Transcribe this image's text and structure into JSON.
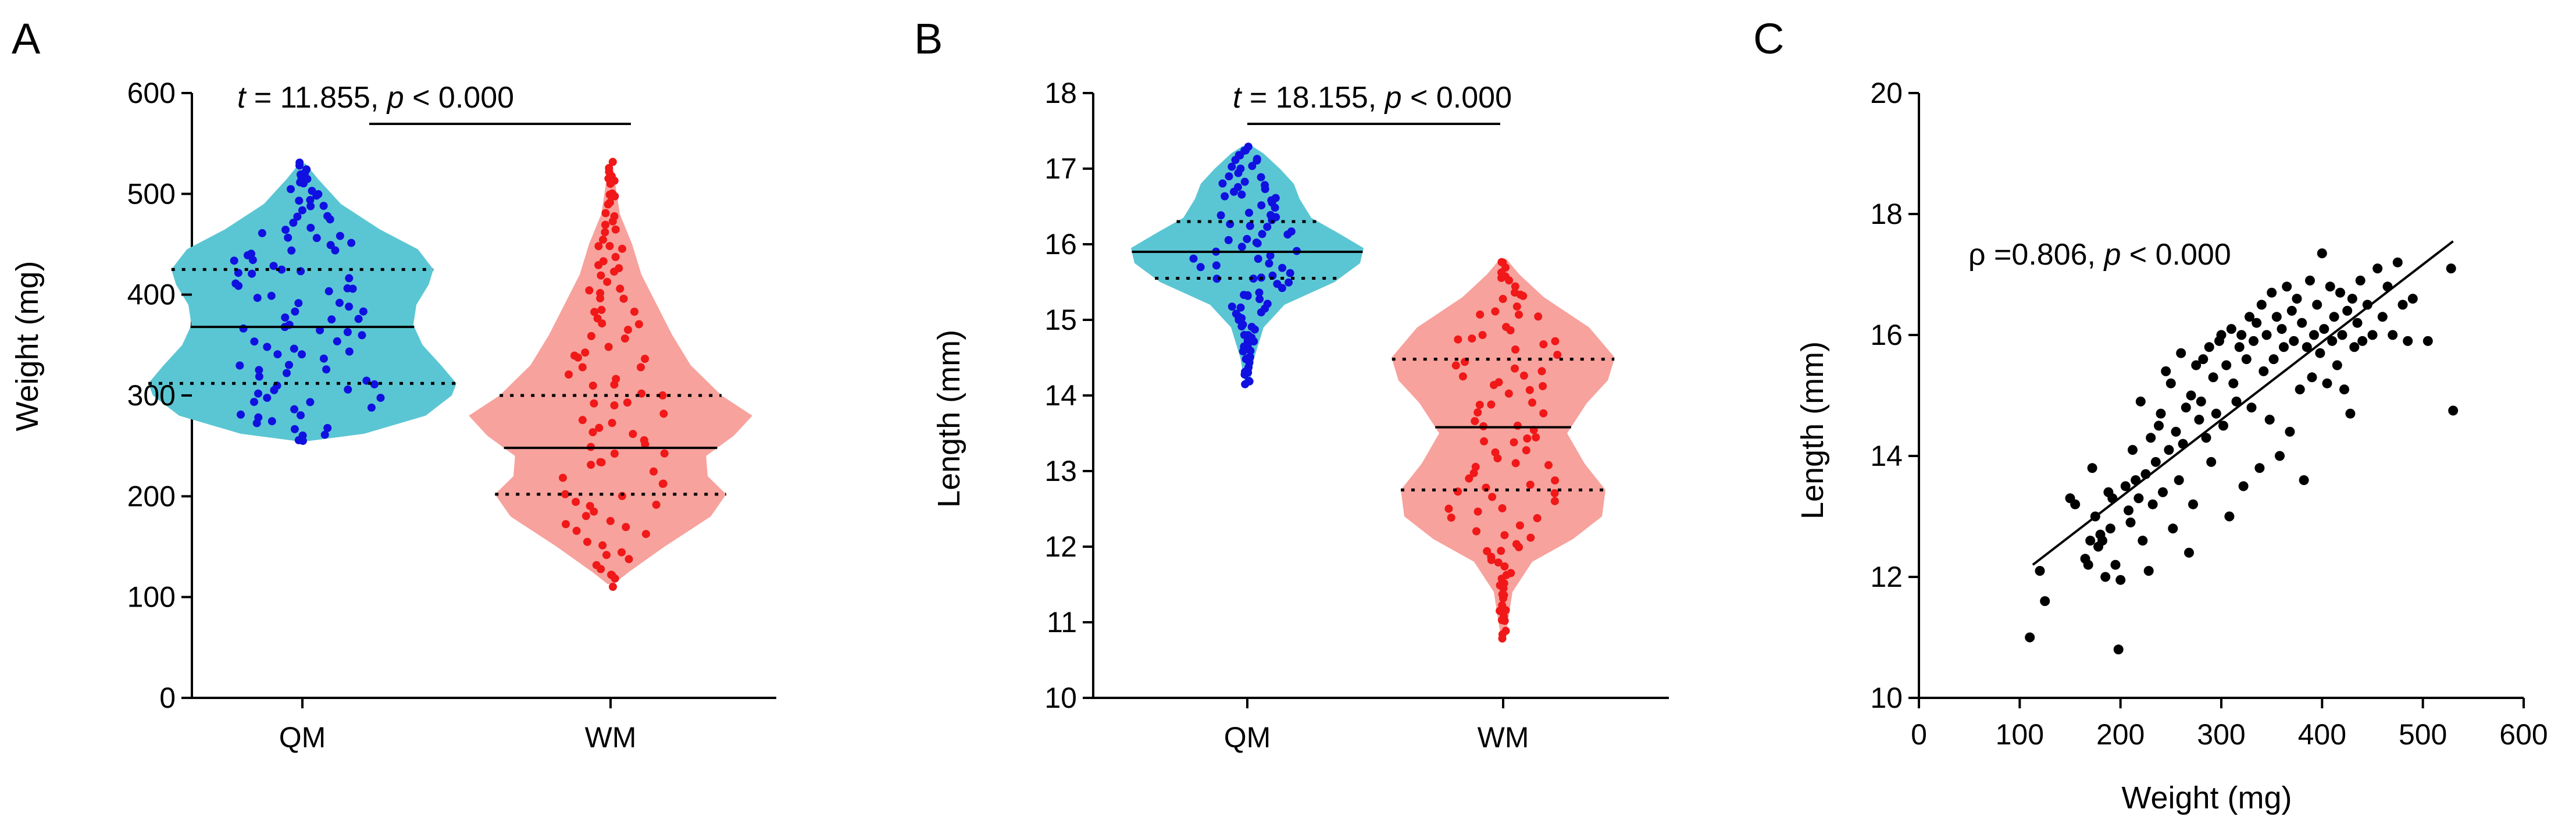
{
  "figure": {
    "colors": {
      "qm_fill": "#5BC6D3",
      "qm_dot": "#1010E0",
      "wm_fill": "#F7A29D",
      "wm_dot": "#F01818",
      "scatter_dot": "#000000"
    }
  },
  "chart_data": [
    {
      "panel_label": "A",
      "type": "violin",
      "title": "",
      "xlabel": "",
      "ylabel": "Weight (mg)",
      "ylim": [
        0,
        600
      ],
      "yticks": [
        "0",
        "100",
        "200",
        "300",
        "400",
        "500",
        "600"
      ],
      "categories": [
        "QM",
        "WM"
      ],
      "annotation": {
        "t_label": "t",
        "t_value": " = 11.855, ",
        "p_label": "p",
        "p_value": " < 0.000"
      },
      "series": [
        {
          "name": "QM",
          "median": 368,
          "q1": 312,
          "q3": 425,
          "min": 255,
          "max": 530,
          "density": [
            [
              255,
              0.05
            ],
            [
              262,
              0.4
            ],
            [
              280,
              0.8
            ],
            [
              300,
              0.97
            ],
            [
              312,
              1.0
            ],
            [
              330,
              0.9
            ],
            [
              350,
              0.78
            ],
            [
              370,
              0.72
            ],
            [
              390,
              0.74
            ],
            [
              410,
              0.82
            ],
            [
              425,
              0.85
            ],
            [
              445,
              0.75
            ],
            [
              465,
              0.5
            ],
            [
              490,
              0.25
            ],
            [
              515,
              0.1
            ],
            [
              530,
              0.02
            ]
          ]
        },
        {
          "name": "WM",
          "median": 248,
          "q1": 202,
          "q3": 300,
          "min": 113,
          "max": 532,
          "density": [
            [
              113,
              0.02
            ],
            [
              125,
              0.12
            ],
            [
              150,
              0.35
            ],
            [
              180,
              0.65
            ],
            [
              202,
              0.75
            ],
            [
              220,
              0.63
            ],
            [
              240,
              0.62
            ],
            [
              260,
              0.8
            ],
            [
              280,
              0.92
            ],
            [
              300,
              0.72
            ],
            [
              330,
              0.52
            ],
            [
              360,
              0.4
            ],
            [
              390,
              0.3
            ],
            [
              420,
              0.2
            ],
            [
              450,
              0.14
            ],
            [
              480,
              0.06
            ],
            [
              500,
              0.04
            ],
            [
              532,
              0.01
            ]
          ]
        }
      ]
    },
    {
      "panel_label": "B",
      "type": "violin",
      "title": "",
      "xlabel": "",
      "ylabel": "Length (mm)",
      "ylim": [
        10,
        18
      ],
      "yticks": [
        "10",
        "11",
        "12",
        "13",
        "14",
        "15",
        "16",
        "17",
        "18"
      ],
      "categories": [
        "QM",
        "WM"
      ],
      "annotation": {
        "t_label": "t",
        "t_value": " = 18.155, ",
        "p_label": "p",
        "p_value": " < 0.000"
      },
      "series": [
        {
          "name": "QM",
          "median": 15.9,
          "q1": 15.55,
          "q3": 16.3,
          "min": 14.15,
          "max": 17.3,
          "density": [
            [
              14.15,
              0.02
            ],
            [
              14.5,
              0.06
            ],
            [
              14.9,
              0.14
            ],
            [
              15.2,
              0.32
            ],
            [
              15.5,
              0.75
            ],
            [
              15.75,
              0.97
            ],
            [
              15.95,
              1.0
            ],
            [
              16.15,
              0.78
            ],
            [
              16.35,
              0.55
            ],
            [
              16.6,
              0.45
            ],
            [
              16.8,
              0.4
            ],
            [
              17.0,
              0.28
            ],
            [
              17.2,
              0.14
            ],
            [
              17.3,
              0.04
            ]
          ]
        },
        {
          "name": "WM",
          "median": 13.58,
          "q1": 12.75,
          "q3": 14.48,
          "min": 10.82,
          "max": 15.8,
          "density": [
            [
              10.82,
              0.02
            ],
            [
              11.0,
              0.04
            ],
            [
              11.4,
              0.08
            ],
            [
              11.8,
              0.25
            ],
            [
              12.1,
              0.6
            ],
            [
              12.4,
              0.85
            ],
            [
              12.75,
              0.88
            ],
            [
              13.1,
              0.7
            ],
            [
              13.5,
              0.55
            ],
            [
              13.9,
              0.72
            ],
            [
              14.2,
              0.9
            ],
            [
              14.5,
              0.96
            ],
            [
              14.9,
              0.74
            ],
            [
              15.3,
              0.35
            ],
            [
              15.6,
              0.14
            ],
            [
              15.8,
              0.03
            ]
          ]
        }
      ]
    },
    {
      "panel_label": "C",
      "type": "scatter",
      "title": "",
      "xlabel": "Weight (mg)",
      "ylabel": "Length (mm)",
      "xlim": [
        0,
        600
      ],
      "ylim": [
        10,
        20
      ],
      "xticks": [
        "0",
        "100",
        "200",
        "300",
        "400",
        "500",
        "600"
      ],
      "yticks": [
        "10",
        "12",
        "14",
        "16",
        "18",
        "20"
      ],
      "annotation": {
        "rho_label": "ρ",
        "rho_value": " =0.806, ",
        "p_label": "p",
        "p_value": " < 0.000"
      },
      "fit_line": {
        "x": [
          113,
          530
        ],
        "y": [
          12.2,
          17.55
        ]
      },
      "points": [
        [
          110,
          11.0
        ],
        [
          120,
          12.1
        ],
        [
          125,
          11.6
        ],
        [
          150,
          13.3
        ],
        [
          155,
          13.2
        ],
        [
          165,
          12.3
        ],
        [
          168,
          12.2
        ],
        [
          170,
          12.6
        ],
        [
          172,
          13.8
        ],
        [
          175,
          13.0
        ],
        [
          178,
          12.5
        ],
        [
          180,
          12.7
        ],
        [
          182,
          12.6
        ],
        [
          185,
          12.0
        ],
        [
          188,
          13.4
        ],
        [
          190,
          12.8
        ],
        [
          192,
          13.3
        ],
        [
          195,
          12.2
        ],
        [
          198,
          10.8
        ],
        [
          200,
          11.95
        ],
        [
          205,
          13.5
        ],
        [
          208,
          13.1
        ],
        [
          210,
          12.9
        ],
        [
          212,
          14.1
        ],
        [
          215,
          13.6
        ],
        [
          218,
          13.3
        ],
        [
          220,
          14.9
        ],
        [
          222,
          12.6
        ],
        [
          225,
          13.7
        ],
        [
          228,
          12.1
        ],
        [
          230,
          14.3
        ],
        [
          232,
          13.2
        ],
        [
          235,
          13.9
        ],
        [
          238,
          14.5
        ],
        [
          240,
          14.7
        ],
        [
          242,
          13.4
        ],
        [
          245,
          15.4
        ],
        [
          248,
          14.1
        ],
        [
          250,
          15.2
        ],
        [
          252,
          12.8
        ],
        [
          255,
          14.4
        ],
        [
          258,
          13.6
        ],
        [
          260,
          15.7
        ],
        [
          262,
          14.2
        ],
        [
          265,
          14.8
        ],
        [
          268,
          12.4
        ],
        [
          270,
          15.0
        ],
        [
          272,
          13.2
        ],
        [
          275,
          15.5
        ],
        [
          278,
          14.6
        ],
        [
          280,
          14.9
        ],
        [
          282,
          15.6
        ],
        [
          285,
          14.3
        ],
        [
          288,
          15.8
        ],
        [
          290,
          13.9
        ],
        [
          292,
          15.3
        ],
        [
          295,
          14.7
        ],
        [
          298,
          15.9
        ],
        [
          300,
          16.0
        ],
        [
          302,
          14.5
        ],
        [
          305,
          15.5
        ],
        [
          308,
          13.0
        ],
        [
          310,
          16.1
        ],
        [
          312,
          15.2
        ],
        [
          315,
          14.9
        ],
        [
          318,
          15.8
        ],
        [
          320,
          16.0
        ],
        [
          322,
          13.5
        ],
        [
          325,
          15.6
        ],
        [
          328,
          16.3
        ],
        [
          330,
          14.8
        ],
        [
          332,
          15.9
        ],
        [
          335,
          16.2
        ],
        [
          338,
          13.8
        ],
        [
          340,
          16.5
        ],
        [
          342,
          15.4
        ],
        [
          345,
          16.0
        ],
        [
          348,
          14.6
        ],
        [
          350,
          16.7
        ],
        [
          352,
          15.6
        ],
        [
          355,
          16.3
        ],
        [
          358,
          14.0
        ],
        [
          360,
          16.1
        ],
        [
          362,
          15.8
        ],
        [
          365,
          16.8
        ],
        [
          368,
          14.4
        ],
        [
          370,
          16.4
        ],
        [
          372,
          15.9
        ],
        [
          375,
          16.6
        ],
        [
          378,
          15.1
        ],
        [
          380,
          16.2
        ],
        [
          382,
          13.6
        ],
        [
          385,
          15.8
        ],
        [
          388,
          16.9
        ],
        [
          390,
          15.3
        ],
        [
          392,
          16.0
        ],
        [
          395,
          16.5
        ],
        [
          398,
          15.7
        ],
        [
          400,
          17.35
        ],
        [
          402,
          16.1
        ],
        [
          405,
          15.2
        ],
        [
          408,
          16.8
        ],
        [
          410,
          15.9
        ],
        [
          412,
          16.3
        ],
        [
          415,
          15.5
        ],
        [
          418,
          16.7
        ],
        [
          420,
          16.0
        ],
        [
          422,
          15.1
        ],
        [
          425,
          16.4
        ],
        [
          428,
          14.7
        ],
        [
          430,
          16.6
        ],
        [
          432,
          15.8
        ],
        [
          435,
          16.2
        ],
        [
          438,
          16.9
        ],
        [
          440,
          15.9
        ],
        [
          445,
          16.5
        ],
        [
          450,
          16.0
        ],
        [
          455,
          17.1
        ],
        [
          460,
          16.3
        ],
        [
          465,
          16.8
        ],
        [
          470,
          16.0
        ],
        [
          475,
          17.2
        ],
        [
          480,
          16.5
        ],
        [
          485,
          15.9
        ],
        [
          490,
          16.6
        ],
        [
          505,
          15.9
        ],
        [
          528,
          17.1
        ],
        [
          530,
          14.75
        ]
      ]
    }
  ]
}
